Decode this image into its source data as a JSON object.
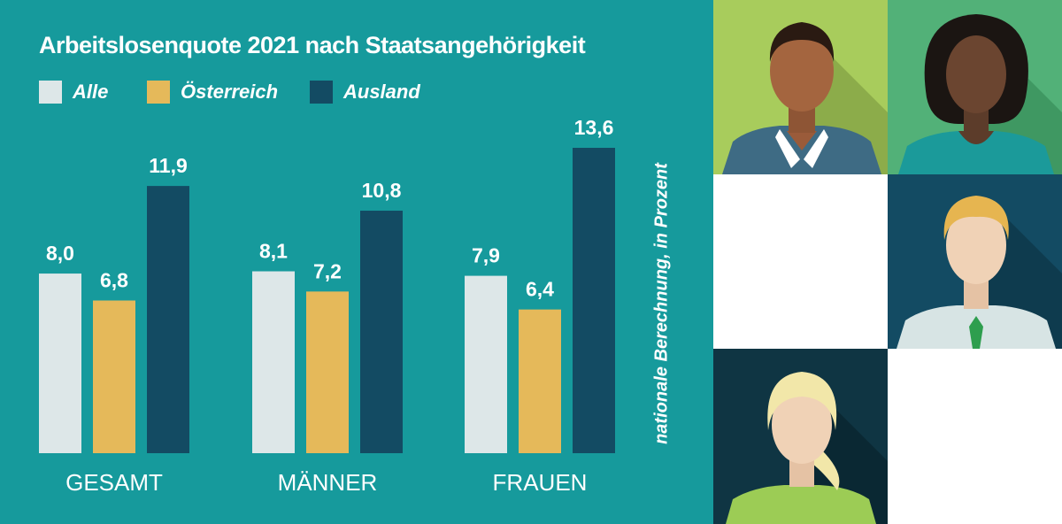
{
  "chart_data": {
    "type": "bar",
    "title": "Arbeitslosenquote 2021 nach Staatsangehörigkeit",
    "categories": [
      "GESAMT",
      "MÄNNER",
      "FRAUEN"
    ],
    "series": [
      {
        "name": "Alle",
        "values": [
          8.0,
          8.1,
          7.9
        ],
        "labels": [
          "8,0",
          "8,1",
          "7,9"
        ],
        "color": "#dde7e8"
      },
      {
        "name": "Österreich",
        "values": [
          6.8,
          7.2,
          6.4
        ],
        "labels": [
          "6,8",
          "7,2",
          "6,4"
        ],
        "color": "#e5b95a"
      },
      {
        "name": "Ausland",
        "values": [
          11.9,
          10.8,
          13.6
        ],
        "labels": [
          "11,9",
          "10,8",
          "13,6"
        ],
        "color": "#134b63"
      }
    ],
    "ylabel": "nationale Berechnung, in Prozent",
    "ylim": [
      0,
      13.6
    ],
    "legend_position": "top-left",
    "grid": false
  },
  "colors": {
    "panel_background": "#169a9c",
    "text": "#ffffff"
  },
  "portraits": [
    {
      "icon": "man-dark-skin-icon",
      "background": "#a8cc5c",
      "shadow": "#8cac4a"
    },
    {
      "icon": "woman-dark-skin-icon",
      "background": "#52b178",
      "shadow": "#3f9862"
    },
    {
      "icon": "blank-tile",
      "background": "#ffffff"
    },
    {
      "icon": "man-blond-icon",
      "background": "#134b63",
      "shadow": "#0e3b4e"
    },
    {
      "icon": "woman-blonde-icon",
      "background": "#0f3543",
      "shadow": "#0a2833"
    },
    {
      "icon": "blank-tile",
      "background": "#ffffff"
    }
  ]
}
